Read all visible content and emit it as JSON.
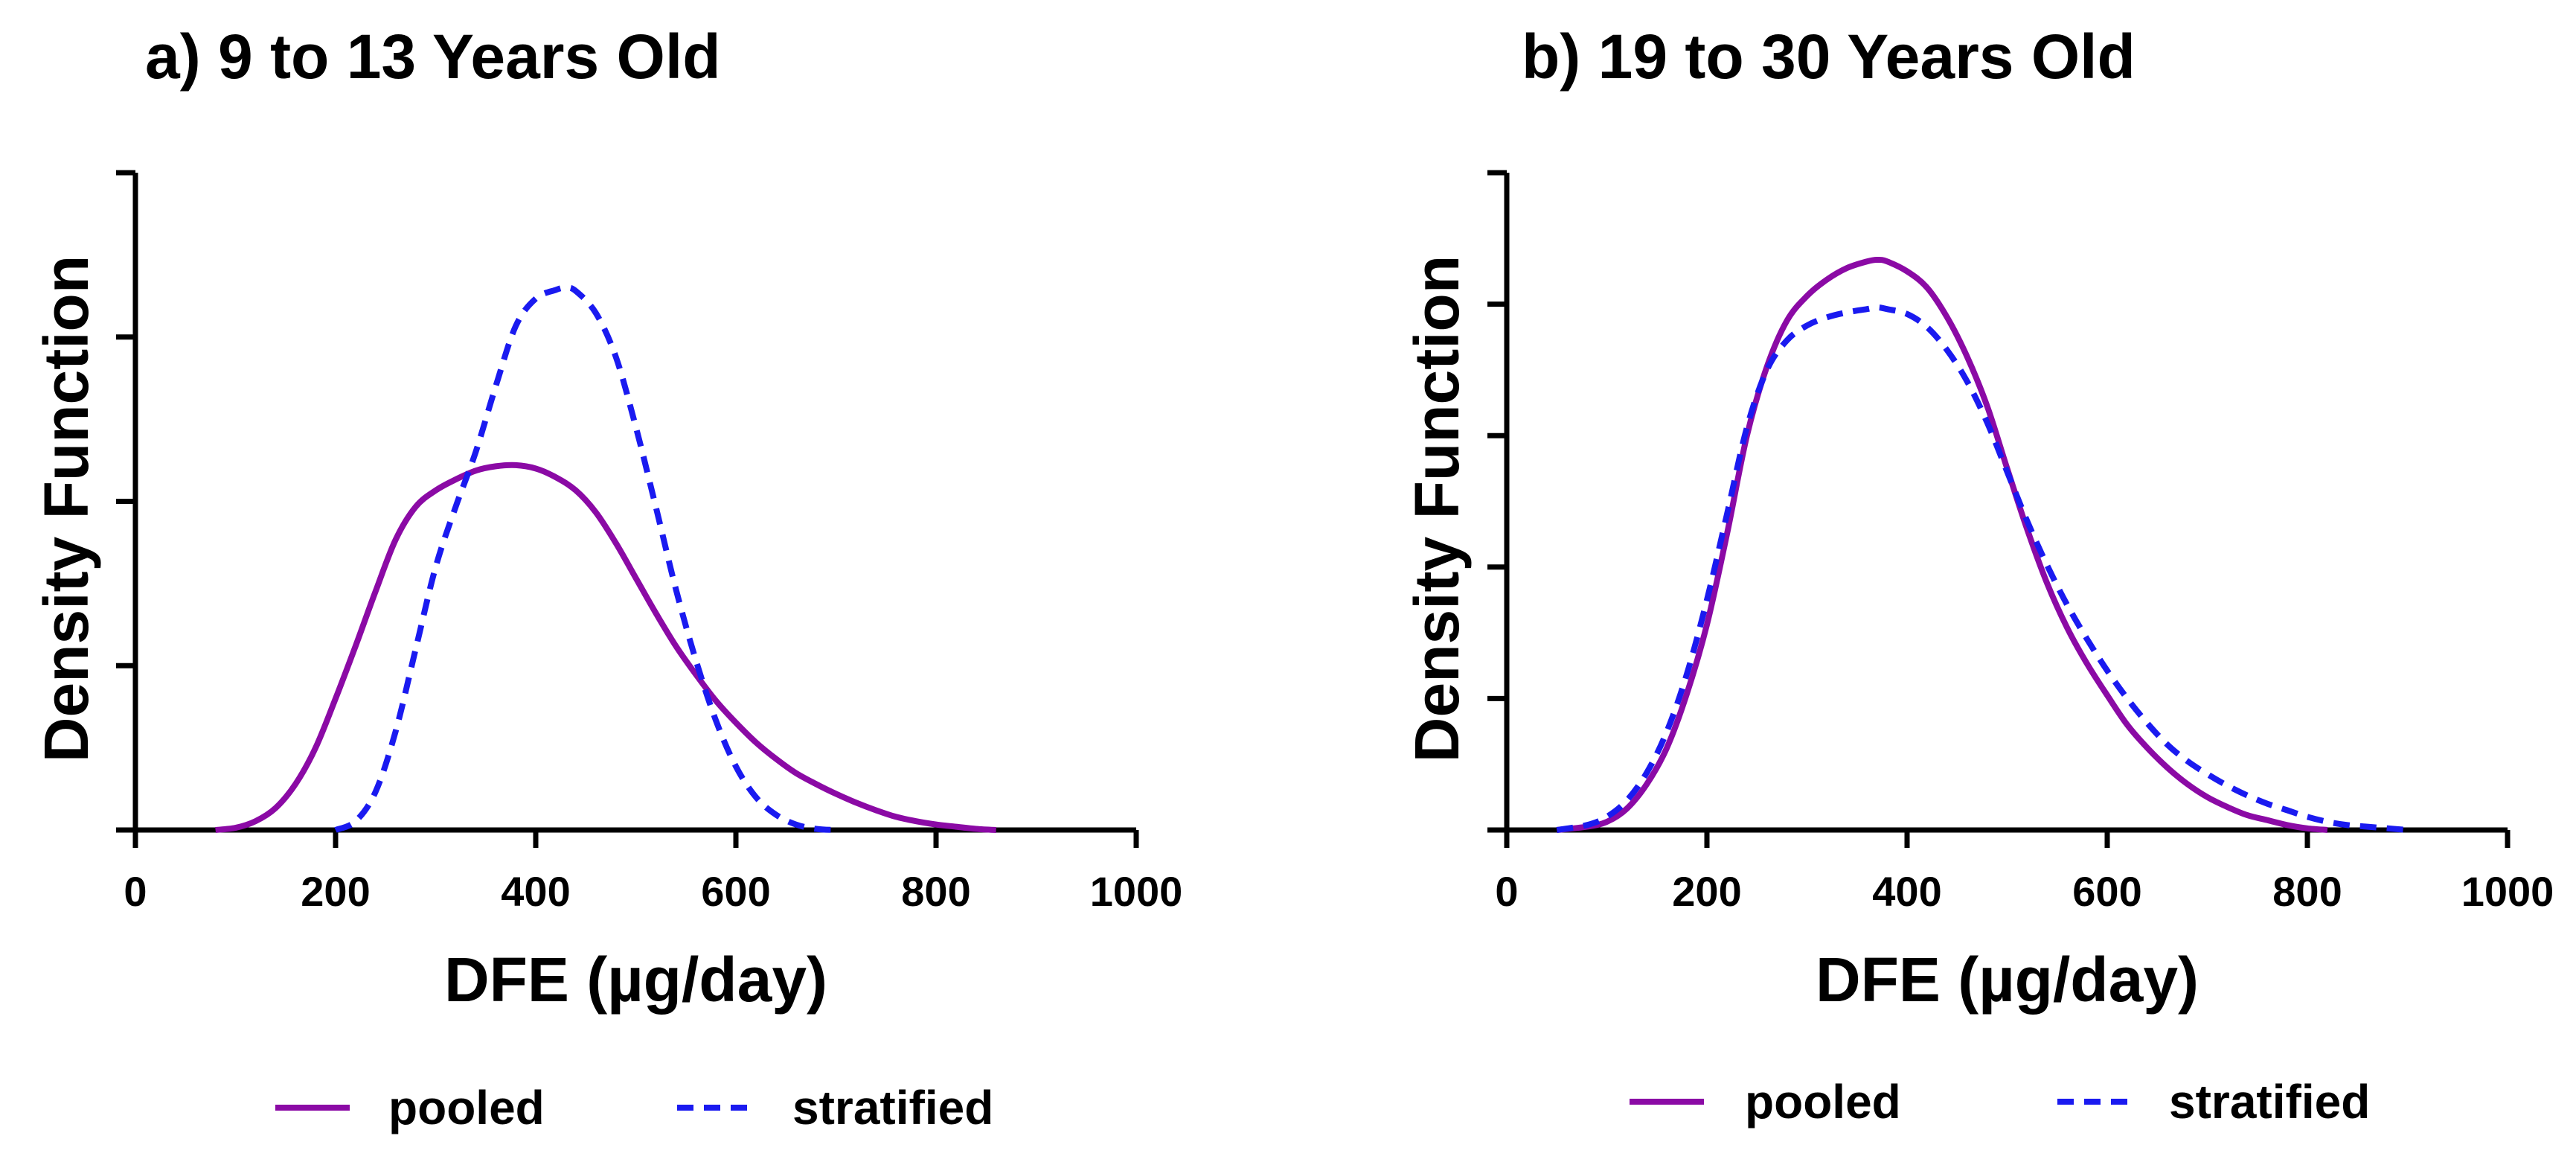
{
  "chart_data": [
    {
      "type": "line",
      "title": "a) 9 to 13 Years Old",
      "xlabel": "DFE (µg/day)",
      "ylabel": "Density Function",
      "xlim": [
        0,
        1000
      ],
      "ylim": [
        0,
        0.006
      ],
      "xticks": [
        "0",
        "200",
        "400",
        "600",
        "800",
        "1000"
      ],
      "yticks_count": 4,
      "series": [
        {
          "name": "pooled",
          "color": "#8B0AA5",
          "dash": "solid",
          "x": [
            80,
            100,
            120,
            140,
            160,
            180,
            200,
            220,
            240,
            260,
            280,
            300,
            320,
            340,
            360,
            380,
            400,
            420,
            440,
            460,
            480,
            500,
            520,
            540,
            560,
            580,
            600,
            620,
            640,
            660,
            680,
            700,
            720,
            740,
            760,
            780,
            800,
            820,
            840,
            860
          ],
          "y": [
            0.0,
            2e-05,
            8e-05,
            0.0002,
            0.00042,
            0.00075,
            0.0012,
            0.00168,
            0.00218,
            0.00265,
            0.00295,
            0.0031,
            0.0032,
            0.00328,
            0.00332,
            0.00333,
            0.0033,
            0.00322,
            0.0031,
            0.0029,
            0.00262,
            0.0023,
            0.00198,
            0.00168,
            0.00142,
            0.00118,
            0.00098,
            0.0008,
            0.00065,
            0.00052,
            0.00042,
            0.00033,
            0.00025,
            0.00018,
            0.00012,
            8e-05,
            5e-05,
            3e-05,
            1e-05,
            0.0
          ]
        },
        {
          "name": "stratified",
          "color": "#1A1AF0",
          "dash": "dashed",
          "x": [
            200,
            220,
            240,
            260,
            280,
            300,
            320,
            340,
            360,
            380,
            400,
            420,
            430,
            440,
            460,
            480,
            500,
            520,
            540,
            560,
            580,
            600,
            620,
            640,
            660,
            680,
            700
          ],
          "y": [
            0.0,
            8e-05,
            0.00035,
            0.0009,
            0.00165,
            0.0024,
            0.00295,
            0.00345,
            0.00405,
            0.0046,
            0.00485,
            0.00493,
            0.00495,
            0.00492,
            0.00472,
            0.00432,
            0.00368,
            0.00295,
            0.0022,
            0.00155,
            0.001,
            0.00058,
            0.0003,
            0.00014,
            5e-05,
            1e-05,
            0.0
          ]
        }
      ],
      "legend": [
        "pooled",
        "stratified"
      ]
    },
    {
      "type": "line",
      "title": "b) 19 to 30 Years Old",
      "xlabel": "DFE (µg/day)",
      "ylabel": "Density Function",
      "xlim": [
        0,
        1000
      ],
      "ylim": [
        0,
        0.004
      ],
      "xticks": [
        "0",
        "200",
        "400",
        "600",
        "800",
        "1000"
      ],
      "yticks_count": 5,
      "series": [
        {
          "name": "pooled",
          "color": "#8B0AA5",
          "dash": "solid",
          "x": [
            50,
            80,
            100,
            120,
            140,
            160,
            180,
            200,
            220,
            240,
            260,
            280,
            300,
            320,
            340,
            360,
            370,
            380,
            400,
            420,
            440,
            460,
            480,
            500,
            520,
            540,
            560,
            580,
            600,
            620,
            640,
            660,
            680,
            700,
            720,
            740,
            760,
            780,
            800,
            820
          ],
          "y": [
            0.0,
            2e-05,
            5e-05,
            0.00013,
            0.00028,
            0.0005,
            0.00083,
            0.00125,
            0.0018,
            0.0024,
            0.00282,
            0.0031,
            0.00325,
            0.00335,
            0.00342,
            0.00346,
            0.00347,
            0.00346,
            0.0034,
            0.0033,
            0.00312,
            0.00288,
            0.00258,
            0.0022,
            0.00183,
            0.0015,
            0.00123,
            0.00101,
            0.00082,
            0.00064,
            0.0005,
            0.00038,
            0.00028,
            0.0002,
            0.00014,
            9e-05,
            6e-05,
            3e-05,
            1e-05,
            0.0
          ]
        },
        {
          "name": "stratified",
          "color": "#1A1AF0",
          "dash": "dashed",
          "x": [
            50,
            80,
            100,
            120,
            140,
            160,
            180,
            200,
            220,
            240,
            260,
            280,
            300,
            320,
            340,
            360,
            370,
            380,
            400,
            420,
            440,
            460,
            480,
            500,
            520,
            540,
            560,
            580,
            600,
            620,
            640,
            660,
            680,
            700,
            720,
            740,
            760,
            780,
            800,
            820,
            840,
            860,
            880,
            900
          ],
          "y": [
            0.0,
            3e-05,
            8e-05,
            0.00018,
            0.00035,
            0.0006,
            0.00095,
            0.0014,
            0.00192,
            0.00245,
            0.0028,
            0.00298,
            0.00307,
            0.00312,
            0.00315,
            0.00317,
            0.00318,
            0.00317,
            0.00314,
            0.00306,
            0.00292,
            0.00273,
            0.00248,
            0.00218,
            0.00188,
            0.00161,
            0.00137,
            0.00116,
            0.00097,
            0.0008,
            0.00065,
            0.00052,
            0.00042,
            0.00034,
            0.00027,
            0.00021,
            0.00016,
            0.00012,
            8e-05,
            5e-05,
            3e-05,
            2e-05,
            1e-05,
            0.0
          ]
        }
      ],
      "legend": [
        "pooled",
        "stratified"
      ]
    }
  ]
}
